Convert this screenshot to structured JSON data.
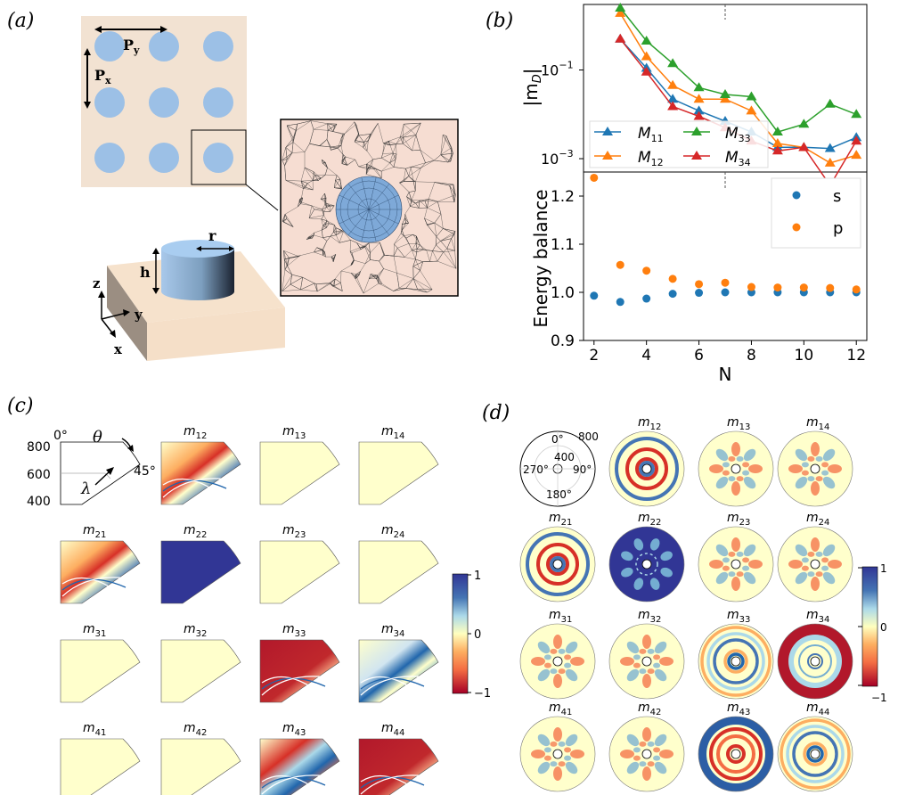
{
  "panels": {
    "a": {
      "label": "(a)",
      "lattice_labels": {
        "px": "P",
        "px_sub": "x",
        "py": "P",
        "py_sub": "y"
      },
      "pillar_labels": {
        "r": "r",
        "h": "h"
      },
      "axes_labels": {
        "z": "z",
        "y": "y",
        "x": "x"
      }
    },
    "b": {
      "label": "(b)"
    },
    "c": {
      "label": "(c)"
    },
    "d": {
      "label": "(d)"
    }
  },
  "chart_data": [
    {
      "type": "line",
      "panel": "b-top",
      "ylabel": "|m",
      "ylabel_sub": "D",
      "ylabel_end": "|",
      "yscale": "log",
      "ylim": [
        0.0005,
        3
      ],
      "xlim": [
        1.6,
        12.4
      ],
      "yticks": [
        {
          "value": 0.1,
          "base": "10",
          "exp": "−1"
        },
        {
          "value": 0.001,
          "base": "10",
          "exp": "−3"
        }
      ],
      "vline_x": 7,
      "x": [
        2,
        3,
        4,
        5,
        6,
        7,
        8,
        9,
        10,
        11,
        12
      ],
      "series": [
        {
          "name": "M",
          "sub": "11",
          "color": "#1f77b4",
          "values": [
            null,
            0.5,
            0.11,
            0.022,
            0.012,
            0.007,
            0.004,
            0.0018,
            0.0018,
            0.0017,
            0.003
          ]
        },
        {
          "name": "M",
          "sub": "12",
          "color": "#ff7f0e",
          "values": [
            null,
            1.9,
            0.2,
            0.045,
            0.022,
            0.022,
            0.012,
            0.0022,
            0.0018,
            0.0008,
            0.0012
          ]
        },
        {
          "name": "M",
          "sub": "33",
          "color": "#2ca02c",
          "values": [
            null,
            2.5,
            0.45,
            0.14,
            0.04,
            0.028,
            0.025,
            0.004,
            0.006,
            0.017,
            0.01
          ]
        },
        {
          "name": "M",
          "sub": "34",
          "color": "#d62728",
          "values": [
            null,
            0.5,
            0.09,
            0.015,
            0.009,
            0.005,
            0.0025,
            0.0015,
            0.0018,
            0.00025,
            0.0025
          ]
        }
      ]
    },
    {
      "type": "scatter",
      "panel": "b-bottom",
      "xlabel": "N",
      "ylabel": "Energy balance",
      "ylim": [
        0.9,
        1.25
      ],
      "xlim": [
        1.6,
        12.4
      ],
      "xticks": [
        "2",
        "4",
        "6",
        "8",
        "10",
        "12"
      ],
      "yticks": [
        "0.9",
        "1.0",
        "1.1",
        "1.2"
      ],
      "vline_x": 7,
      "x": [
        2,
        3,
        4,
        5,
        6,
        7,
        8,
        9,
        10,
        11,
        12
      ],
      "series": [
        {
          "name": "s",
          "color": "#1f77b4",
          "values": [
            0.993,
            0.98,
            0.987,
            0.997,
            0.999,
            1.0,
            1.0,
            1.0,
            1.0,
            1.0,
            1.0
          ]
        },
        {
          "name": "p",
          "color": "#ff7f0e",
          "values": [
            1.238,
            1.057,
            1.045,
            1.028,
            1.017,
            1.02,
            1.011,
            1.01,
            1.01,
            1.009,
            1.006
          ]
        }
      ]
    },
    {
      "type": "heatmap",
      "panel": "c",
      "axis_labels": {
        "theta": "θ",
        "lambda": "λ",
        "angle_0": "0°",
        "angle_45": "45°"
      },
      "radial_ticks": [
        "800",
        "600",
        "400"
      ],
      "colorbar_ticks": [
        "1",
        "0",
        "−1"
      ],
      "cells": [
        {
          "row": 1,
          "col": 2,
          "name": "m",
          "sub": "12",
          "pattern": "bands"
        },
        {
          "row": 1,
          "col": 3,
          "name": "m",
          "sub": "13",
          "pattern": "flat"
        },
        {
          "row": 1,
          "col": 4,
          "name": "m",
          "sub": "14",
          "pattern": "flat"
        },
        {
          "row": 2,
          "col": 1,
          "name": "m",
          "sub": "21",
          "pattern": "bands"
        },
        {
          "row": 2,
          "col": 2,
          "name": "m",
          "sub": "22",
          "pattern": "blue"
        },
        {
          "row": 2,
          "col": 3,
          "name": "m",
          "sub": "23",
          "pattern": "flat"
        },
        {
          "row": 2,
          "col": 4,
          "name": "m",
          "sub": "24",
          "pattern": "flat"
        },
        {
          "row": 3,
          "col": 1,
          "name": "m",
          "sub": "31",
          "pattern": "flat"
        },
        {
          "row": 3,
          "col": 2,
          "name": "m",
          "sub": "32",
          "pattern": "flat"
        },
        {
          "row": 3,
          "col": 3,
          "name": "m",
          "sub": "33",
          "pattern": "red"
        },
        {
          "row": 3,
          "col": 4,
          "name": "m",
          "sub": "34",
          "pattern": "blueband"
        },
        {
          "row": 4,
          "col": 1,
          "name": "m",
          "sub": "41",
          "pattern": "flat"
        },
        {
          "row": 4,
          "col": 2,
          "name": "m",
          "sub": "42",
          "pattern": "flat"
        },
        {
          "row": 4,
          "col": 3,
          "name": "m",
          "sub": "43",
          "pattern": "mixed"
        },
        {
          "row": 4,
          "col": 4,
          "name": "m",
          "sub": "44",
          "pattern": "red"
        }
      ]
    },
    {
      "type": "heatmap",
      "panel": "d",
      "polar_labels": {
        "a0": "0°",
        "a90": "90°",
        "a180": "180°",
        "a270": "270°",
        "r800": "800",
        "r400": "400"
      },
      "colorbar_ticks": [
        "1",
        "0",
        "−1"
      ],
      "cells": [
        {
          "row": 1,
          "col": 2,
          "name": "m",
          "sub": "12",
          "pattern": "rings"
        },
        {
          "row": 1,
          "col": 3,
          "name": "m",
          "sub": "13",
          "pattern": "petal"
        },
        {
          "row": 1,
          "col": 4,
          "name": "m",
          "sub": "14",
          "pattern": "petal"
        },
        {
          "row": 2,
          "col": 1,
          "name": "m",
          "sub": "21",
          "pattern": "rings"
        },
        {
          "row": 2,
          "col": 2,
          "name": "m",
          "sub": "22",
          "pattern": "blue"
        },
        {
          "row": 2,
          "col": 3,
          "name": "m",
          "sub": "23",
          "pattern": "petal"
        },
        {
          "row": 2,
          "col": 4,
          "name": "m",
          "sub": "24",
          "pattern": "petal"
        },
        {
          "row": 3,
          "col": 1,
          "name": "m",
          "sub": "31",
          "pattern": "petal"
        },
        {
          "row": 3,
          "col": 2,
          "name": "m",
          "sub": "32",
          "pattern": "petal"
        },
        {
          "row": 3,
          "col": 3,
          "name": "m",
          "sub": "33",
          "pattern": "bluerings"
        },
        {
          "row": 3,
          "col": 4,
          "name": "m",
          "sub": "34",
          "pattern": "redring"
        },
        {
          "row": 4,
          "col": 1,
          "name": "m",
          "sub": "41",
          "pattern": "petal"
        },
        {
          "row": 4,
          "col": 2,
          "name": "m",
          "sub": "42",
          "pattern": "petal"
        },
        {
          "row": 4,
          "col": 3,
          "name": "m",
          "sub": "43",
          "pattern": "bluering"
        },
        {
          "row": 4,
          "col": 4,
          "name": "m",
          "sub": "44",
          "pattern": "bluerings"
        }
      ]
    }
  ]
}
